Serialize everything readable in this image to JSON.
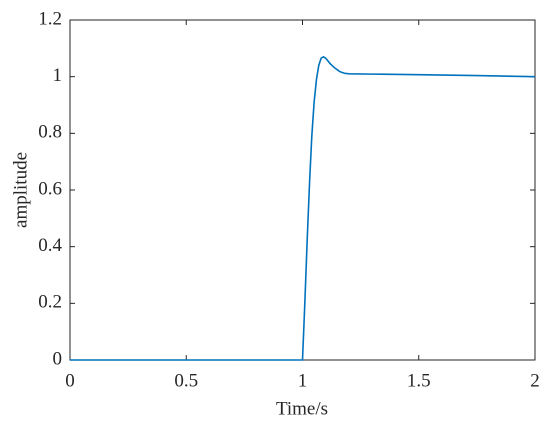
{
  "chart_data": {
    "type": "line",
    "xlabel": "Time/s",
    "ylabel": "amplitude",
    "x": [
      0,
      1.0,
      1.01,
      1.02,
      1.03,
      1.04,
      1.05,
      1.06,
      1.07,
      1.08,
      1.09,
      1.1,
      1.12,
      1.14,
      1.16,
      1.18,
      1.2,
      1.3,
      1.5,
      1.75,
      2
    ],
    "series": [
      {
        "name": "amplitude",
        "color": "#0072BD",
        "values": [
          0,
          0,
          0.2,
          0.42,
          0.62,
          0.79,
          0.91,
          0.99,
          1.04,
          1.065,
          1.07,
          1.065,
          1.045,
          1.03,
          1.018,
          1.012,
          1.01,
          1.009,
          1.007,
          1.004,
          1.0
        ]
      }
    ],
    "xlim": [
      0,
      2
    ],
    "ylim": [
      0,
      1.2
    ],
    "xticks": [
      0,
      0.5,
      1,
      1.5,
      2
    ],
    "yticks": [
      0,
      0.2,
      0.4,
      0.6,
      0.8,
      1,
      1.2
    ]
  }
}
